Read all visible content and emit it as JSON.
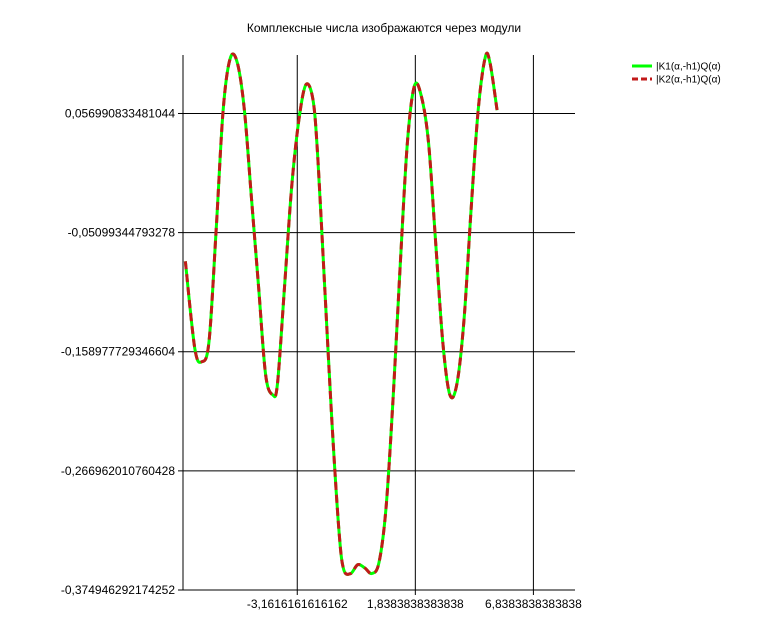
{
  "chart_data": {
    "type": "line",
    "title": "Комплексные числа изображаются через модули",
    "xlabel": "",
    "ylabel": "",
    "xlim": [
      -8.0,
      8.6
    ],
    "ylim": [
      -0.374946292174252,
      0.11
    ],
    "x_ticks": [
      {
        "value": -3.1616161616162,
        "label": "-3,1616161616162"
      },
      {
        "value": 1.8383838383838,
        "label": "1,8383838383838"
      },
      {
        "value": 6.8383838383838,
        "label": "6,8383838383838"
      }
    ],
    "y_ticks": [
      {
        "value": 0.056990833481044,
        "label": "0,056990833481044"
      },
      {
        "value": -0.05099344793278,
        "label": "-0,05099344793278"
      },
      {
        "value": -0.158977729346604,
        "label": "-0,158977729346604"
      },
      {
        "value": -0.266962010760428,
        "label": "-0,266962010760428"
      },
      {
        "value": -0.374946292174252,
        "label": "-0,374946292174252"
      }
    ],
    "grid": true,
    "legend_position": "top-right",
    "series": [
      {
        "name": "|K1(α,-h1)Q(α)",
        "color": "#00ff00",
        "style": "solid",
        "points": [
          [
            -7.9,
            -0.077
          ],
          [
            -7.5,
            -0.156
          ],
          [
            -7.2,
            -0.168
          ],
          [
            -6.9,
            -0.15
          ],
          [
            -6.6,
            -0.05
          ],
          [
            -6.3,
            0.06
          ],
          [
            -6.0,
            0.107
          ],
          [
            -5.7,
            0.103
          ],
          [
            -5.4,
            0.06
          ],
          [
            -5.1,
            -0.02
          ],
          [
            -4.8,
            -0.1
          ],
          [
            -4.5,
            -0.18
          ],
          [
            -4.2,
            -0.198
          ],
          [
            -4.0,
            -0.188
          ],
          [
            -3.7,
            -0.1
          ],
          [
            -3.4,
            -0.01
          ],
          [
            -3.1,
            0.05
          ],
          [
            -2.8,
            0.083
          ],
          [
            -2.5,
            0.07
          ],
          [
            -2.3,
            0.02
          ],
          [
            -2.0,
            -0.1
          ],
          [
            -1.7,
            -0.22
          ],
          [
            -1.4,
            -0.32
          ],
          [
            -1.2,
            -0.356
          ],
          [
            -0.9,
            -0.36
          ],
          [
            -0.6,
            -0.352
          ],
          [
            -0.3,
            -0.355
          ],
          [
            0.0,
            -0.36
          ],
          [
            0.3,
            -0.35
          ],
          [
            0.6,
            -0.3
          ],
          [
            0.9,
            -0.2
          ],
          [
            1.2,
            -0.08
          ],
          [
            1.5,
            0.03
          ],
          [
            1.8,
            0.082
          ],
          [
            2.1,
            0.072
          ],
          [
            2.4,
            0.03
          ],
          [
            2.7,
            -0.06
          ],
          [
            3.0,
            -0.15
          ],
          [
            3.3,
            -0.198
          ],
          [
            3.6,
            -0.188
          ],
          [
            3.9,
            -0.13
          ],
          [
            4.2,
            -0.03
          ],
          [
            4.5,
            0.06
          ],
          [
            4.8,
            0.108
          ],
          [
            5.0,
            0.103
          ],
          [
            5.3,
            0.06
          ]
        ]
      },
      {
        "name": "|K2(α,-h1)Q(α)",
        "color": "#c21a1a",
        "style": "dashed",
        "points": [
          [
            -7.9,
            -0.077
          ],
          [
            -7.5,
            -0.156
          ],
          [
            -7.2,
            -0.168
          ],
          [
            -6.9,
            -0.15
          ],
          [
            -6.6,
            -0.05
          ],
          [
            -6.3,
            0.06
          ],
          [
            -6.0,
            0.107
          ],
          [
            -5.7,
            0.103
          ],
          [
            -5.4,
            0.06
          ],
          [
            -5.1,
            -0.02
          ],
          [
            -4.8,
            -0.1
          ],
          [
            -4.5,
            -0.18
          ],
          [
            -4.2,
            -0.198
          ],
          [
            -4.0,
            -0.188
          ],
          [
            -3.7,
            -0.1
          ],
          [
            -3.4,
            -0.01
          ],
          [
            -3.1,
            0.05
          ],
          [
            -2.8,
            0.083
          ],
          [
            -2.5,
            0.07
          ],
          [
            -2.3,
            0.02
          ],
          [
            -2.0,
            -0.1
          ],
          [
            -1.7,
            -0.22
          ],
          [
            -1.4,
            -0.32
          ],
          [
            -1.2,
            -0.356
          ],
          [
            -0.9,
            -0.36
          ],
          [
            -0.6,
            -0.352
          ],
          [
            -0.3,
            -0.355
          ],
          [
            0.0,
            -0.36
          ],
          [
            0.3,
            -0.35
          ],
          [
            0.6,
            -0.3
          ],
          [
            0.9,
            -0.2
          ],
          [
            1.2,
            -0.08
          ],
          [
            1.5,
            0.03
          ],
          [
            1.8,
            0.082
          ],
          [
            2.1,
            0.072
          ],
          [
            2.4,
            0.03
          ],
          [
            2.7,
            -0.06
          ],
          [
            3.0,
            -0.15
          ],
          [
            3.3,
            -0.198
          ],
          [
            3.6,
            -0.188
          ],
          [
            3.9,
            -0.13
          ],
          [
            4.2,
            -0.03
          ],
          [
            4.5,
            0.06
          ],
          [
            4.8,
            0.108
          ],
          [
            5.0,
            0.103
          ],
          [
            5.3,
            0.06
          ]
        ]
      }
    ]
  }
}
